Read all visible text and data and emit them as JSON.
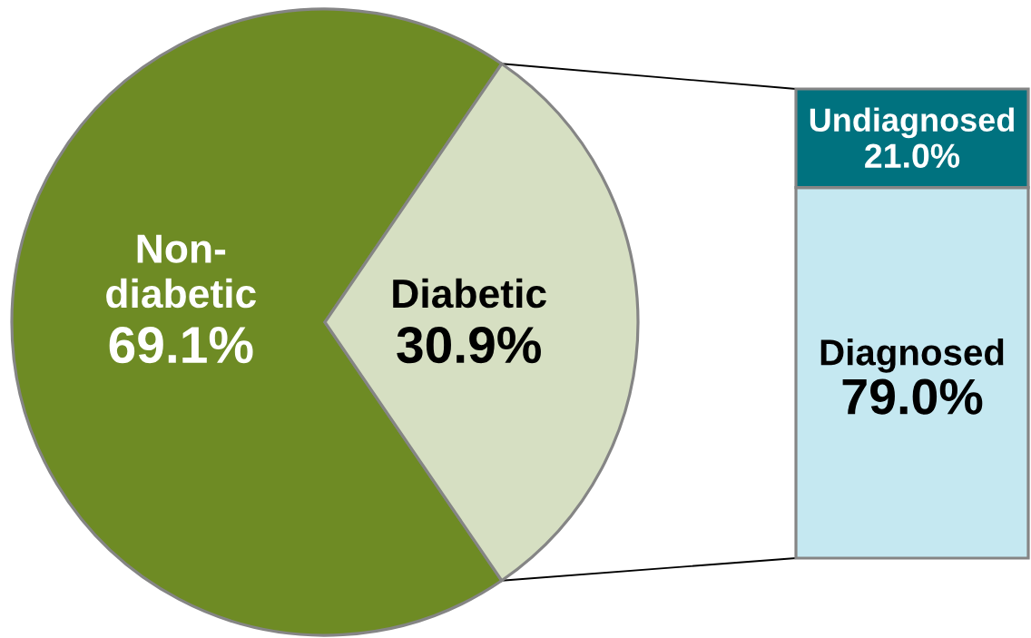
{
  "chart_data": [
    {
      "type": "pie",
      "categories": [
        "Non-diabetic",
        "Diabetic"
      ],
      "values": [
        69.1,
        30.9
      ],
      "colors": [
        "#6e8b24",
        "#d6dfc2"
      ],
      "value_labels": [
        "69.1%",
        "30.9%"
      ]
    },
    {
      "type": "bar",
      "stacked": true,
      "categories": [
        null
      ],
      "series": [
        {
          "name": "Diagnosed",
          "color": "#c5e8f1",
          "values": [
            79.0
          ],
          "value_labels": [
            "79.0%"
          ]
        },
        {
          "name": "Undiagnosed",
          "color": "#00727f",
          "values": [
            21.0
          ],
          "value_labels": [
            "21.0%"
          ]
        }
      ],
      "tick_labels": false
    }
  ]
}
